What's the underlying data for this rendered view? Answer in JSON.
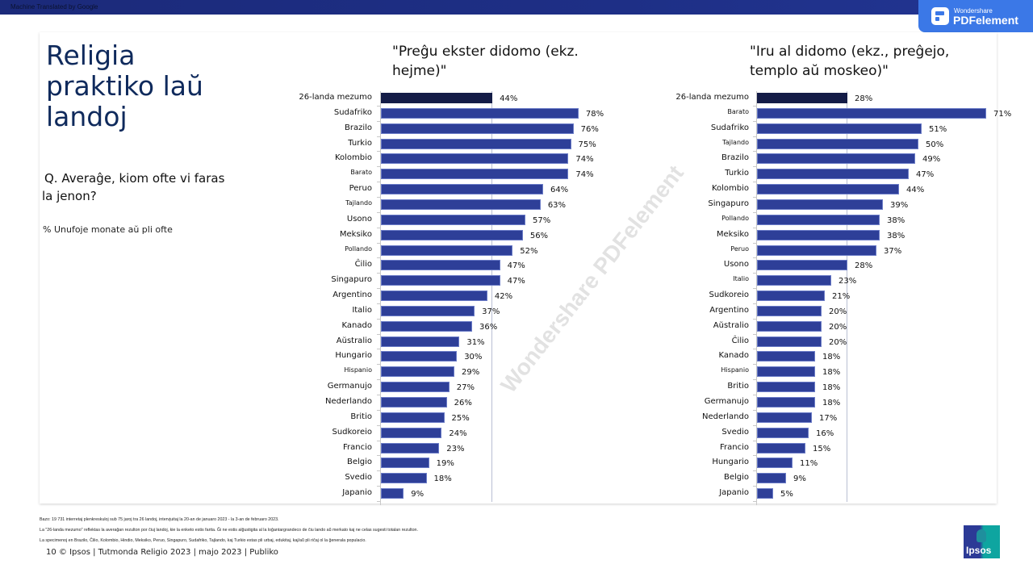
{
  "topbar": {
    "text": "Machine Translated by Google"
  },
  "pdf_badge": {
    "brand": "Wondershare",
    "product": "PDFelement"
  },
  "slide": {
    "title": "Religia praktiko laŭ landoj",
    "question_line1": "Q. Averaĝe, kiom ofte vi faras",
    "question_line2": "la jenon?",
    "note": "% Unufoje monate aŭ pli ofte",
    "watermark": "Wondershare PDFelement",
    "footnotes": [
      "Bazo: 19 731 interretaj plenkreskuloj sub 75 jaroj tra 26 landoj, intervjuitaj la 20-an de januaro 2023 - la 3-an de februaro 2023.",
      "La \"26-landa mezumo\" reflektas la averaĝan rezulton por ĉiuj landoj, kie la enketo estis farita. Ĝi ne estis alĝustigita al la loĝantargrandeco de ĉiu lando aŭ merkato kaj ne celas sugesti totalan rezulton.",
      "La specimenoj en Brazilo, Ĉilio, Kolombio, Hindio, Meksiko, Peruo, Singapuro, Sudafriko, Tajlando, kaj Turkio estas pli urbaj, edukitaj, kaj/aŭ pli riĉaj ol la ĝenerala populacio."
    ],
    "footer": "10 © Ipsos | Tutmonda Religio 2023 | majo 2023 | Publiko",
    "logo_text": "Ipsos"
  },
  "colors": {
    "bar": "#2e3f98",
    "average_bar": "#141c47",
    "title": "#0f2a5c"
  },
  "chart_data": [
    {
      "type": "bar",
      "orientation": "horizontal",
      "title": "\"Preĝu ekster didomo (ekz. hejme)\"",
      "xlabel": "",
      "ylabel": "",
      "xlim": [
        0,
        100
      ],
      "reference_line": 44,
      "categories": [
        "26-landa mezumo",
        "Sudafriko",
        "Brazilo",
        "Turkio",
        "Kolombio",
        "Barato",
        "Peruo",
        "Tajlando",
        "Usono",
        "Meksiko",
        "Pollando",
        "Ĉilio",
        "Singapuro",
        "Argentino",
        "Italio",
        "Kanado",
        "Aŭstralio",
        "Hungario",
        "Hispanio",
        "Germanujo",
        "Nederlando",
        "Britio",
        "Sudkoreio",
        "Francio",
        "Belgio",
        "Svedio",
        "Japanio"
      ],
      "values": [
        44,
        78,
        76,
        75,
        74,
        74,
        64,
        63,
        57,
        56,
        52,
        47,
        47,
        42,
        37,
        36,
        31,
        30,
        29,
        27,
        26,
        25,
        24,
        23,
        19,
        18,
        9
      ],
      "value_labels": [
        "44%",
        "78%",
        "76%",
        "75%",
        "74%",
        "74%",
        "64%",
        "63%",
        "57%",
        "56%",
        "52%",
        "47%",
        "47%",
        "42%",
        "37%",
        "36%",
        "31%",
        "30%",
        "29%",
        "27%",
        "26%",
        "25%",
        "24%",
        "23%",
        "19%",
        "18%",
        "9%"
      ]
    },
    {
      "type": "bar",
      "orientation": "horizontal",
      "title": "\"Iru al didomo (ekz., preĝejo, templo aŭ moskeo)\"",
      "xlabel": "",
      "ylabel": "",
      "xlim": [
        0,
        100
      ],
      "reference_line": 28,
      "categories": [
        "26-landa mezumo",
        "Barato",
        "Sudafriko",
        "Tajlando",
        "Brazilo",
        "Turkio",
        "Kolombio",
        "Singapuro",
        "Pollando",
        "Meksiko",
        "Peruo",
        "Usono",
        "Italio",
        "Sudkoreio",
        "Argentino",
        "Aŭstralio",
        "Ĉilio",
        "Kanado",
        "Hispanio",
        "Britio",
        "Germanujo",
        "Nederlando",
        "Svedio",
        "Francio",
        "Hungario",
        "Belgio",
        "Japanio"
      ],
      "values": [
        28,
        71,
        51,
        50,
        49,
        47,
        44,
        39,
        38,
        38,
        37,
        28,
        23,
        21,
        20,
        20,
        20,
        18,
        18,
        18,
        18,
        17,
        16,
        15,
        11,
        9,
        5
      ],
      "value_labels": [
        "28%",
        "71%",
        "51%",
        "50%",
        "49%",
        "47%",
        "44%",
        "39%",
        "38%",
        "38%",
        "37%",
        "28%",
        "23%",
        "21%",
        "20%",
        "20%",
        "20%",
        "18%",
        "18%",
        "18%",
        "18%",
        "17%",
        "16%",
        "15%",
        "11%",
        "9%",
        "5%"
      ]
    }
  ]
}
